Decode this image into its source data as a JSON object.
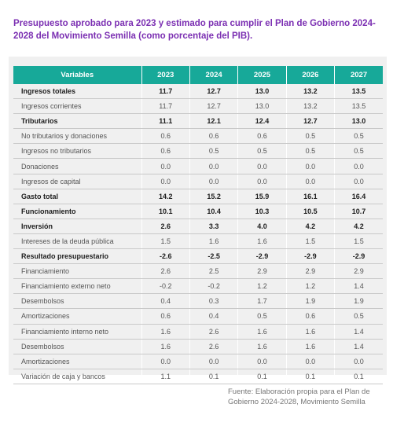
{
  "title": "Presupuesto aprobado para 2023 y estimado para cumplir el Plan de Gobierno 2024-2028 del Movimiento Semilla (como porcentaje del PIB).",
  "table": {
    "headers": [
      "Variables",
      "2023",
      "2024",
      "2025",
      "2026",
      "2027"
    ],
    "rows": [
      {
        "label": "Ingresos totales",
        "bold": true,
        "values": [
          "11.7",
          "12.7",
          "13.0",
          "13.2",
          "13.5"
        ]
      },
      {
        "label": "Ingresos corrientes",
        "bold": false,
        "values": [
          "11.7",
          "12.7",
          "13.0",
          "13.2",
          "13.5"
        ]
      },
      {
        "label": "Tributarios",
        "bold": true,
        "values": [
          "11.1",
          "12.1",
          "12.4",
          "12.7",
          "13.0"
        ]
      },
      {
        "label": "No tributarios y donaciones",
        "bold": false,
        "values": [
          "0.6",
          "0.6",
          "0.6",
          "0.5",
          "0.5"
        ]
      },
      {
        "label": "Ingresos no tributarios",
        "bold": false,
        "values": [
          "0.6",
          "0.5",
          "0.5",
          "0.5",
          "0.5"
        ]
      },
      {
        "label": "Donaciones",
        "bold": false,
        "values": [
          "0.0",
          "0.0",
          "0.0",
          "0.0",
          "0.0"
        ]
      },
      {
        "label": "Ingresos de capital",
        "bold": false,
        "values": [
          "0.0",
          "0.0",
          "0.0",
          "0.0",
          "0.0"
        ]
      },
      {
        "label": "Gasto total",
        "bold": true,
        "values": [
          "14.2",
          "15.2",
          "15.9",
          "16.1",
          "16.4"
        ]
      },
      {
        "label": "Funcionamiento",
        "bold": true,
        "values": [
          "10.1",
          "10.4",
          "10.3",
          "10.5",
          "10.7"
        ]
      },
      {
        "label": "Inversión",
        "bold": true,
        "values": [
          "2.6",
          "3.3",
          "4.0",
          "4.2",
          "4.2"
        ]
      },
      {
        "label": "Intereses de la deuda pública",
        "bold": false,
        "values": [
          "1.5",
          "1.6",
          "1.6",
          "1.5",
          "1.5"
        ]
      },
      {
        "label": "Resultado presupuestario",
        "bold": true,
        "values": [
          "-2.6",
          "-2.5",
          "-2.9",
          "-2.9",
          "-2.9"
        ]
      },
      {
        "label": "Financiamiento",
        "bold": false,
        "values": [
          "2.6",
          "2.5",
          "2.9",
          "2.9",
          "2.9"
        ]
      },
      {
        "label": "Financiamiento externo neto",
        "bold": false,
        "values": [
          "-0.2",
          "-0.2",
          "1.2",
          "1.2",
          "1.4"
        ]
      },
      {
        "label": "Desembolsos",
        "bold": false,
        "values": [
          "0.4",
          "0.3",
          "1.7",
          "1.9",
          "1.9"
        ]
      },
      {
        "label": "Amortizaciones",
        "bold": false,
        "values": [
          "0.6",
          "0.4",
          "0.5",
          "0.6",
          "0.5"
        ]
      },
      {
        "label": "Financiamiento interno neto",
        "bold": false,
        "values": [
          "1.6",
          "2.6",
          "1.6",
          "1.6",
          "1.4"
        ]
      },
      {
        "label": "Desembolsos",
        "bold": false,
        "values": [
          "1.6",
          "2.6",
          "1.6",
          "1.6",
          "1.4"
        ]
      },
      {
        "label": "Amortizaciones",
        "bold": false,
        "values": [
          "0.0",
          "0.0",
          "0.0",
          "0.0",
          "0.0"
        ]
      },
      {
        "label": "Variación de caja y bancos",
        "bold": false,
        "values": [
          "1.1",
          "0.1",
          "0.1",
          "0.1",
          "0.1"
        ]
      }
    ]
  },
  "source": "Fuente: Elaboración propia para el Plan de Gobierno 2024-2028, Movimiento Semilla",
  "colors": {
    "title": "#7b2fb2",
    "header": "#17a999",
    "card": "#f0f0f0"
  }
}
